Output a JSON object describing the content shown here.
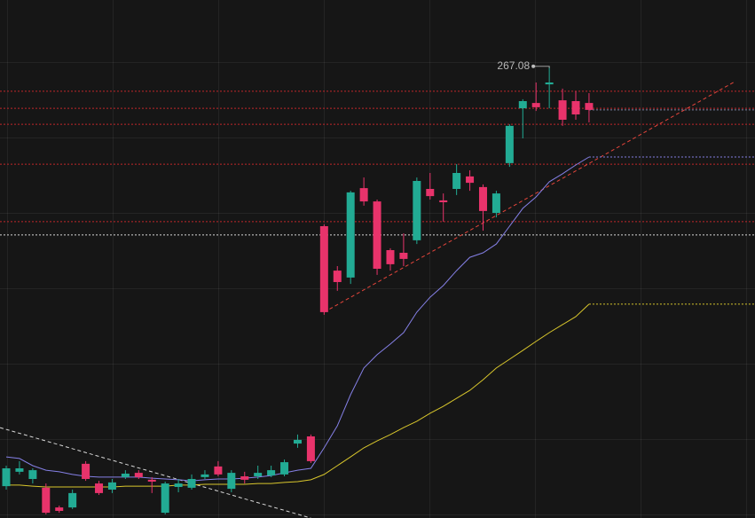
{
  "chart_data": {
    "type": "candlestick",
    "open": [
      109.3,
      114.7,
      112,
      108.7,
      101.3,
      101.3,
      117.7,
      110.3,
      108,
      112.7,
      114.3,
      111.7,
      99.3,
      109,
      108.7,
      112.7,
      116.7,
      108.3,
      113,
      113,
      113.3,
      113.7,
      125.3,
      128,
      207,
      190.3,
      187.7,
      221.3,
      216.3,
      198,
      197,
      201.7,
      221,
      216.7,
      221,
      225.7,
      221.7,
      212,
      230.7,
      251.3,
      253.3,
      260.3,
      254.3,
      254,
      253.3
    ],
    "high": [
      117,
      118.7,
      116,
      110.3,
      102,
      108,
      118.7,
      111.3,
      112,
      115.3,
      115.3,
      112.7,
      111,
      112,
      113.7,
      115.3,
      118.7,
      115.3,
      114.7,
      117,
      117,
      119.3,
      128.7,
      128.7,
      207.7,
      192,
      220.3,
      225.3,
      217,
      198.7,
      204.3,
      225.3,
      227,
      219.3,
      230.3,
      228,
      222.7,
      220.3,
      245.3,
      254.7,
      261,
      267.08,
      258.7,
      257.7,
      257
    ],
    "low": [
      108,
      113.7,
      110.3,
      98.7,
      99.3,
      100.7,
      111.3,
      106,
      106.7,
      112,
      112,
      106.7,
      98.7,
      107,
      108,
      112,
      113,
      107,
      110.3,
      112,
      112.7,
      113,
      123.7,
      118,
      173.7,
      182.7,
      185.3,
      214.7,
      188.7,
      190.3,
      192,
      200.3,
      217,
      208.7,
      218.7,
      220.3,
      205.3,
      210.3,
      229.3,
      240,
      250.3,
      251.3,
      244.7,
      247,
      246
    ],
    "close": [
      116,
      116,
      115.3,
      99.3,
      100,
      106.7,
      112,
      106.7,
      110.7,
      114,
      112.7,
      111,
      110.3,
      110.3,
      112,
      113.7,
      113.7,
      114.3,
      111.7,
      114.3,
      115.3,
      118.3,
      126.7,
      118.7,
      174.7,
      186,
      219.7,
      216.3,
      191,
      192.7,
      194.7,
      224,
      218.3,
      216,
      227,
      223.3,
      212.7,
      219.3,
      244.7,
      254,
      251.7,
      261,
      247,
      249,
      250.7
    ],
    "up_color": "#22ab94",
    "down_color": "#e8336b",
    "last_price_color": "#7d84a8",
    "series": [
      {
        "color": "#8580e6",
        "values": [
          120.3,
          119.7,
          117,
          115.3,
          114.7,
          113.7,
          113,
          112.7,
          112.7,
          112.7,
          112.7,
          112.3,
          112,
          111.7,
          111.3,
          111.7,
          112,
          112,
          112.3,
          112.7,
          113.3,
          114.3,
          115.3,
          116,
          123.7,
          132,
          143.7,
          153.7,
          158.7,
          162.7,
          167,
          174.7,
          180.3,
          184.7,
          190.3,
          195.3,
          197,
          200.3,
          207,
          213.7,
          218,
          223.7,
          226.7,
          230,
          233
        ]
      },
      {
        "color": "#d8c62c",
        "values": [
          109.7,
          109.7,
          109.3,
          109,
          109,
          109,
          109,
          109,
          109,
          109.3,
          109.3,
          109.3,
          109.3,
          109.7,
          109.7,
          110,
          110,
          110,
          110,
          110.3,
          110.3,
          110.7,
          111,
          111.7,
          113.7,
          117,
          120.3,
          123.7,
          126.3,
          128.7,
          131.3,
          133.7,
          136.7,
          139.3,
          142.3,
          145.3,
          149.3,
          153.7,
          157,
          160.3,
          163.7,
          167,
          170,
          173,
          177.7
        ]
      }
    ],
    "levels": [
      {
        "value": 257.7,
        "color": "#c0262a"
      },
      {
        "value": 251.3,
        "color": "#c0262a"
      },
      {
        "value": 245.3,
        "color": "#c0262a"
      },
      {
        "value": 230.3,
        "color": "#c0262a"
      },
      {
        "value": 208.7,
        "color": "#c0262a"
      },
      {
        "value": 203.7,
        "color": "#d8d8d8"
      }
    ],
    "trendlines": [
      {
        "color": "#e5453b",
        "x": [
          24,
          55
        ],
        "y": [
          174.7,
          261.3
        ]
      },
      {
        "color": "#d8d8d8",
        "x": [
          -0.47,
          23
        ],
        "y": [
          131.3,
          97.3
        ]
      }
    ],
    "xlim": [
      -0.47,
      56.53
    ],
    "ylim": [
      97.33,
      292
    ],
    "grid": true
  }
}
